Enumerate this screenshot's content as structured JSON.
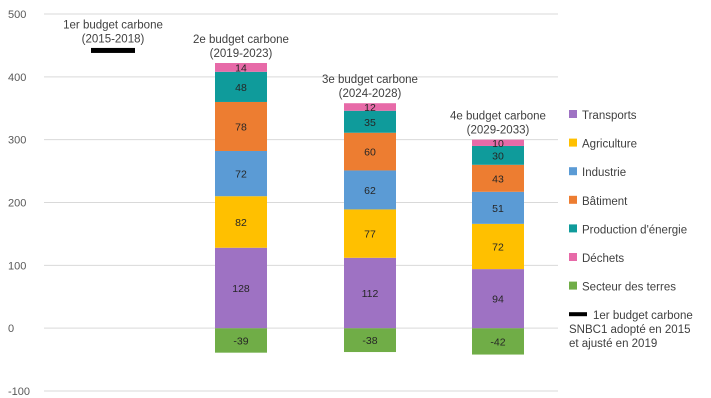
{
  "chart_data": {
    "type": "bar",
    "stacked": true,
    "ylim": [
      -100,
      500
    ],
    "y_ticks": [
      "500",
      "400",
      "300",
      "200",
      "100",
      "0",
      "-100"
    ],
    "y_tick_values": [
      500,
      400,
      300,
      200,
      100,
      0,
      -100
    ],
    "grid": true,
    "legend_position": "right",
    "categories": [
      "1er budget carbone\n(2015-2018)",
      "2e budget carbone\n(2019-2023)",
      "3e budget carbone\n(2024-2028)",
      "4e budget carbone\n(2029-2033)"
    ],
    "series": [
      {
        "name": "Secteur des terres",
        "color": "#70ad47",
        "values": [
          null,
          -39,
          -38,
          -42
        ],
        "labels": [
          "",
          "-39",
          "-38",
          "-42"
        ]
      },
      {
        "name": "Transports",
        "color": "#9e72c3",
        "values": [
          null,
          128,
          112,
          94
        ],
        "labels": [
          "",
          "128",
          "112",
          "94"
        ]
      },
      {
        "name": "Agriculture",
        "color": "#ffc000",
        "values": [
          null,
          82,
          77,
          72
        ],
        "labels": [
          "",
          "82",
          "77",
          "72"
        ]
      },
      {
        "name": "Industrie",
        "color": "#5b9bd5",
        "values": [
          null,
          72,
          62,
          51
        ],
        "labels": [
          "",
          "72",
          "62",
          "51"
        ]
      },
      {
        "name": "Bâtiment",
        "color": "#ed7d31",
        "values": [
          null,
          78,
          60,
          43
        ],
        "labels": [
          "",
          "78",
          "60",
          "43"
        ]
      },
      {
        "name": "Production d'énergie",
        "color": "#0f9b9b",
        "values": [
          null,
          48,
          35,
          30
        ],
        "labels": [
          "",
          "48",
          "35",
          "30"
        ]
      },
      {
        "name": "Déchets",
        "color": "#e76aa8",
        "values": [
          null,
          14,
          12,
          10
        ],
        "labels": [
          "",
          "14",
          "12",
          "10"
        ]
      }
    ],
    "markers": {
      "name": "1er budget carbone\nSNBC1 adopté en 2015\net ajusté en 2019",
      "color": "#000000",
      "values": [
        442,
        null,
        null,
        null
      ]
    },
    "legend": [
      "Transports",
      "Agriculture",
      "Industrie",
      "Bâtiment",
      "Production d'énergie",
      "Déchets",
      "Secteur des terres",
      "1er budget carbone\nSNBC1 adopté en 2015\net ajusté en 2019"
    ]
  }
}
